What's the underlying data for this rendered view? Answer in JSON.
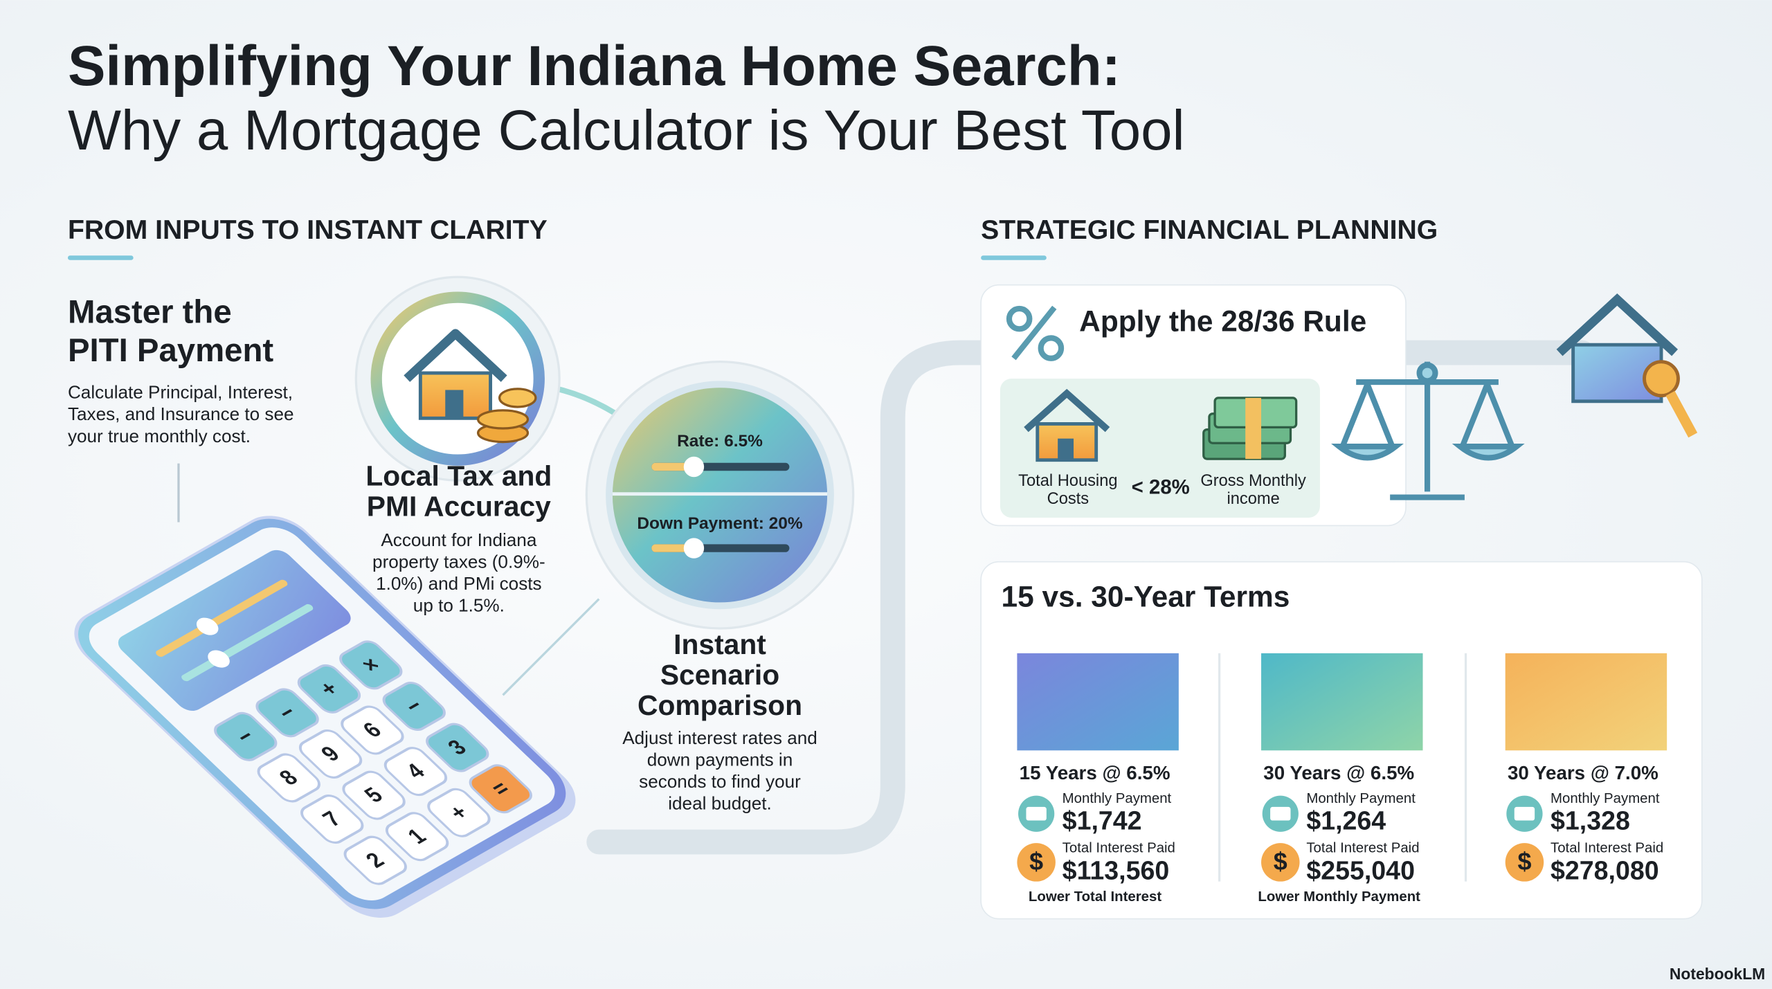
{
  "header": {
    "title": "Simplifying Your Indiana Home Search:",
    "subtitle": "Why a Mortgage Calculator is Your Best Tool"
  },
  "left": {
    "heading": "FROM INPUTS TO INSTANT CLARITY",
    "features": [
      {
        "title": [
          "Master the",
          "PITI Payment"
        ],
        "body": [
          "Calculate Principal, Interest,",
          "Taxes, and Insurance to see",
          "your true monthly cost."
        ]
      },
      {
        "title": [
          "Local Tax and",
          "PMI Accuracy"
        ],
        "body": [
          "Account for Indiana",
          "property taxes (0.9%-",
          "1.0%) and PMi costs",
          "up to 1.5%."
        ]
      },
      {
        "title": [
          "Instant",
          "Scenario",
          "Comparison"
        ],
        "body": [
          "Adjust interest rates and",
          "down payments in",
          "seconds to find your",
          "ideal budget."
        ]
      }
    ],
    "sliders": [
      "Rate: 6.5%",
      "Down Payment: 20%"
    ],
    "calculator_keys": [
      "−",
      "−",
      "+",
      "×",
      "8",
      "9",
      "6",
      "−",
      "7",
      "5",
      "4",
      "3",
      "2",
      "1",
      "+",
      "="
    ]
  },
  "right": {
    "heading": "STRATEGIC FINANCIAL PLANNING",
    "rule": {
      "title": "Apply the 28/36 Rule",
      "left_label": [
        "Total Housing",
        "Costs"
      ],
      "comparison": "< 28%",
      "right_label": [
        "Gross Monthly",
        "income"
      ]
    },
    "terms": {
      "title": "15 vs. 30-Year Terms",
      "currency_symbol": "$",
      "columns": [
        {
          "label": "15 Years @ 6.5%",
          "monthly_label": "Monthly Payment",
          "monthly": "$1,742",
          "interest_label": "Total Interest Paid",
          "interest": "$113,560",
          "note": "Lower Total Interest"
        },
        {
          "label": "30 Years @ 6.5%",
          "monthly_label": "Monthly Payment",
          "monthly": "$1,264",
          "interest_label": "Total Interest Paid",
          "interest": "$255,040",
          "note": "Lower Monthly Payment"
        },
        {
          "label": "30 Years @ 7.0%",
          "monthly_label": "Monthly Payment",
          "monthly": "$1,328",
          "interest_label": "Total Interest Paid",
          "interest": "$278,080",
          "note": null
        }
      ]
    }
  },
  "footer": {
    "brand": "NotebookLM"
  }
}
